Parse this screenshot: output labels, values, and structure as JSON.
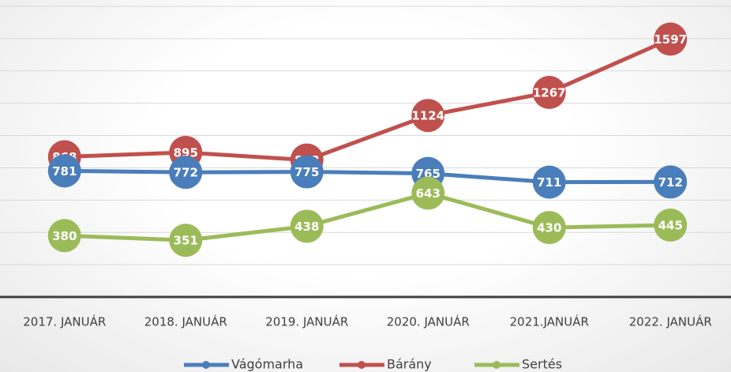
{
  "chart_data": {
    "type": "line",
    "categories": [
      "2017. JANUÁR",
      "2018. JANUÁR",
      "2019. JANUÁR",
      "2020. JANUÁR",
      "2021.JANUÁR",
      "2022. JANUÁR"
    ],
    "series": [
      {
        "name": "Vágómarha",
        "color": "#4a7ebb",
        "values": [
          781,
          772,
          775,
          765,
          711,
          712
        ]
      },
      {
        "name": "Bárány",
        "color": "#c0504d",
        "values": [
          868,
          895,
          848,
          1124,
          1267,
          1597
        ]
      },
      {
        "name": "Sertés",
        "color": "#9bbb59",
        "values": [
          380,
          351,
          438,
          643,
          430,
          445
        ]
      }
    ],
    "ylim": [
      0,
      1800
    ],
    "yticks": [
      0,
      200,
      400,
      600,
      800,
      1000,
      1200,
      1400,
      1600,
      1800
    ],
    "grid": true,
    "legend": "bottom"
  }
}
